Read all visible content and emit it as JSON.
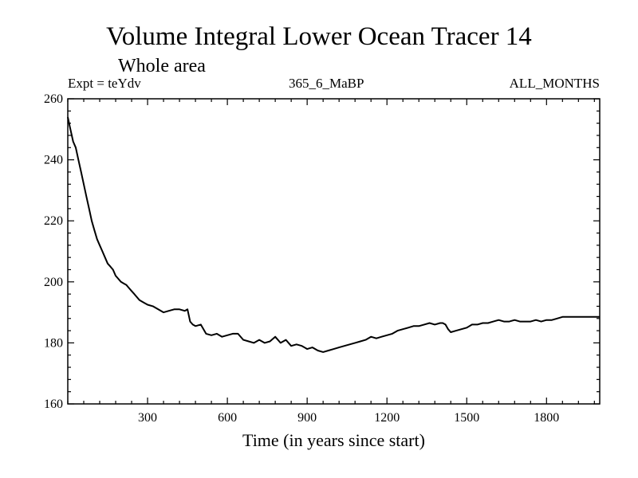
{
  "chart_data": {
    "type": "line",
    "title": "Volume Integral Lower Ocean Tracer 14",
    "subtitle": "Whole area",
    "left_label": "Expt = teYdv",
    "center_label": "365_6_MaBP",
    "right_label": "ALL_MONTHS",
    "xlabel": "Time (in years since start)",
    "ylabel": "",
    "xlim": [
      0,
      2000
    ],
    "ylim": [
      160,
      260
    ],
    "x_ticks": [
      300,
      600,
      900,
      1200,
      1500,
      1800
    ],
    "y_ticks": [
      160,
      180,
      200,
      220,
      240,
      260
    ],
    "grid": false,
    "series": [
      {
        "name": "Lower Ocean Tracer 14",
        "color": "#000000",
        "x": [
          0,
          10,
          20,
          30,
          40,
          50,
          60,
          70,
          80,
          90,
          100,
          110,
          120,
          130,
          140,
          150,
          160,
          170,
          180,
          190,
          200,
          210,
          220,
          230,
          240,
          250,
          260,
          270,
          280,
          290,
          300,
          320,
          340,
          360,
          380,
          400,
          420,
          440,
          450,
          460,
          470,
          480,
          500,
          520,
          540,
          560,
          580,
          600,
          620,
          640,
          660,
          680,
          700,
          720,
          740,
          760,
          780,
          800,
          820,
          840,
          860,
          880,
          900,
          920,
          940,
          960,
          980,
          1000,
          1020,
          1040,
          1060,
          1080,
          1100,
          1120,
          1140,
          1160,
          1180,
          1200,
          1220,
          1240,
          1260,
          1280,
          1300,
          1320,
          1340,
          1360,
          1380,
          1400,
          1410,
          1420,
          1430,
          1440,
          1460,
          1480,
          1500,
          1520,
          1540,
          1560,
          1580,
          1600,
          1620,
          1640,
          1660,
          1680,
          1700,
          1720,
          1740,
          1760,
          1780,
          1800,
          1820,
          1840,
          1860,
          1880,
          1900,
          1920,
          1940,
          1960,
          1980,
          2000
        ],
        "y": [
          254,
          250,
          246,
          244,
          240,
          236,
          232,
          228,
          224,
          220,
          217,
          214,
          212,
          210,
          208,
          206,
          205,
          204,
          202,
          201,
          200,
          199.5,
          199,
          198,
          197,
          196,
          195,
          194,
          193.5,
          193,
          192.5,
          192,
          191,
          190,
          190.5,
          191,
          191,
          190.5,
          191,
          187,
          186,
          185.5,
          186,
          183,
          182.5,
          183,
          182,
          182.5,
          183,
          183,
          181,
          180.5,
          180,
          181,
          180,
          180.5,
          182,
          180,
          181,
          179,
          179.5,
          179,
          178,
          178.5,
          177.5,
          177,
          177.5,
          178,
          178.5,
          179,
          179.5,
          180,
          180.5,
          181,
          182,
          181.5,
          182,
          182.5,
          183,
          184,
          184.5,
          185,
          185.5,
          185.5,
          186,
          186.5,
          186,
          186.5,
          186.5,
          186,
          184.5,
          183.5,
          184,
          184.5,
          185,
          186,
          186,
          186.5,
          186.5,
          187,
          187.5,
          187,
          187,
          187.5,
          187,
          187,
          187,
          187.5,
          187,
          187.5,
          187.5,
          188,
          188.5,
          188.5,
          188.5,
          188.5,
          188.5,
          188.5,
          188.5,
          188.5
        ]
      }
    ]
  }
}
